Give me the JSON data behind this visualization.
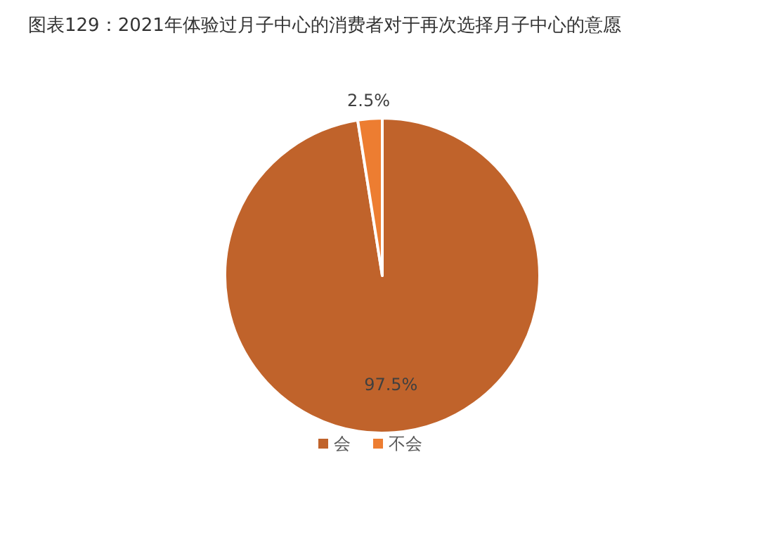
{
  "chart_data": {
    "type": "pie",
    "title": "图表129：2021年体验过月子中心的消费者对于再次选择月子中心的意愿",
    "categories": [
      "会",
      "不会"
    ],
    "values": [
      97.5,
      2.5
    ],
    "colors": [
      "#c0632b",
      "#ed7d31"
    ],
    "value_labels": [
      "97.5%",
      "2.5%"
    ],
    "legend": "bottom"
  }
}
